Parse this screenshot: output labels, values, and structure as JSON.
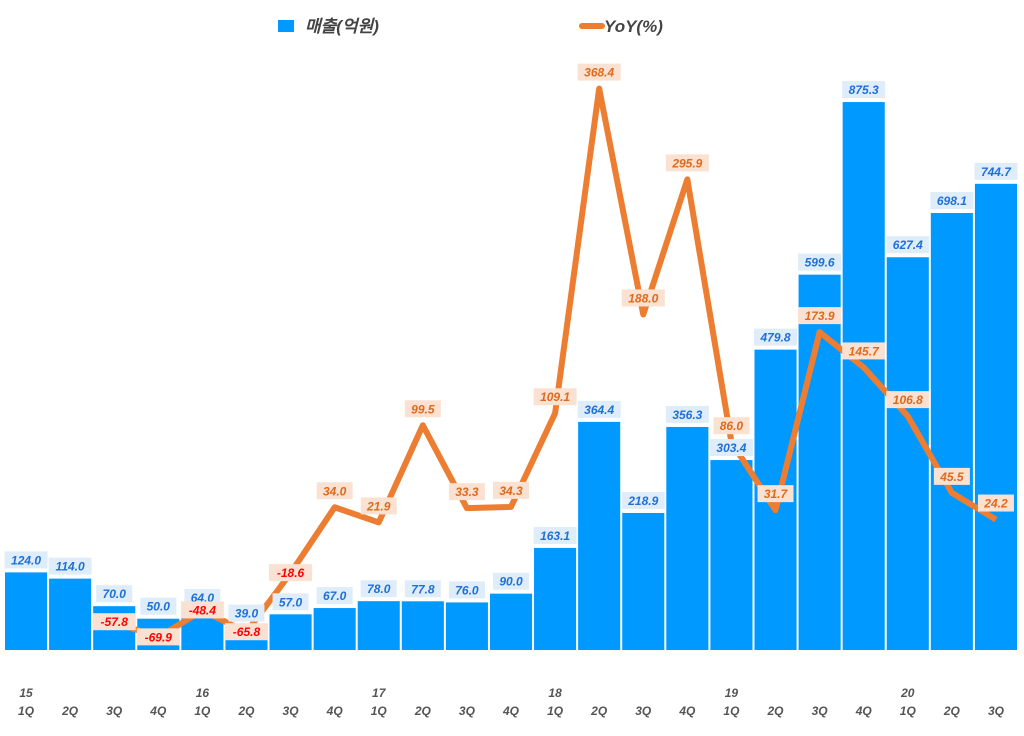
{
  "chart_data": {
    "type": "bar+line",
    "title": "",
    "categories": [
      "1Q",
      "2Q",
      "3Q",
      "4Q",
      "1Q",
      "2Q",
      "3Q",
      "4Q",
      "1Q",
      "2Q",
      "3Q",
      "4Q",
      "1Q",
      "2Q",
      "3Q",
      "4Q",
      "1Q",
      "2Q",
      "3Q",
      "4Q",
      "1Q",
      "2Q",
      "3Q"
    ],
    "year_labels": [
      "15",
      "",
      "",
      "",
      "16",
      "",
      "",
      "",
      "17",
      "",
      "",
      "",
      "18",
      "",
      "",
      "",
      "19",
      "",
      "",
      "",
      "20",
      "",
      ""
    ],
    "series": [
      {
        "name": "매출(억원)",
        "type": "bar",
        "axis": "primary",
        "color": "#0099ff",
        "values": [
          124.0,
          114.0,
          70.0,
          50.0,
          64.0,
          39.0,
          57.0,
          67.0,
          78.0,
          77.8,
          76.0,
          90.0,
          163.1,
          364.4,
          218.9,
          356.3,
          303.4,
          479.8,
          599.6,
          875.3,
          627.4,
          698.1,
          744.7
        ]
      },
      {
        "name": "YoY(%)",
        "type": "line",
        "axis": "secondary",
        "color": "#ed7d31",
        "values": [
          null,
          null,
          -57.8,
          -69.9,
          -48.4,
          -65.8,
          -18.6,
          34.0,
          21.9,
          99.5,
          33.3,
          34.3,
          109.1,
          368.4,
          188.0,
          295.9,
          86.0,
          31.7,
          173.9,
          145.7,
          106.8,
          45.5,
          24.2
        ]
      }
    ],
    "ylim": [
      0,
      1000
    ],
    "y2lim": [
      -80,
      420
    ],
    "grid": false,
    "legend_position": "top",
    "colors": {
      "bar_label": "#1f6fd8",
      "bar_label_bg": "#deedf9",
      "yoy_label_pos": "#e0691a",
      "yoy_label_neg": "#ff0000",
      "yoy_label_bg": "#fbe1d1"
    }
  }
}
